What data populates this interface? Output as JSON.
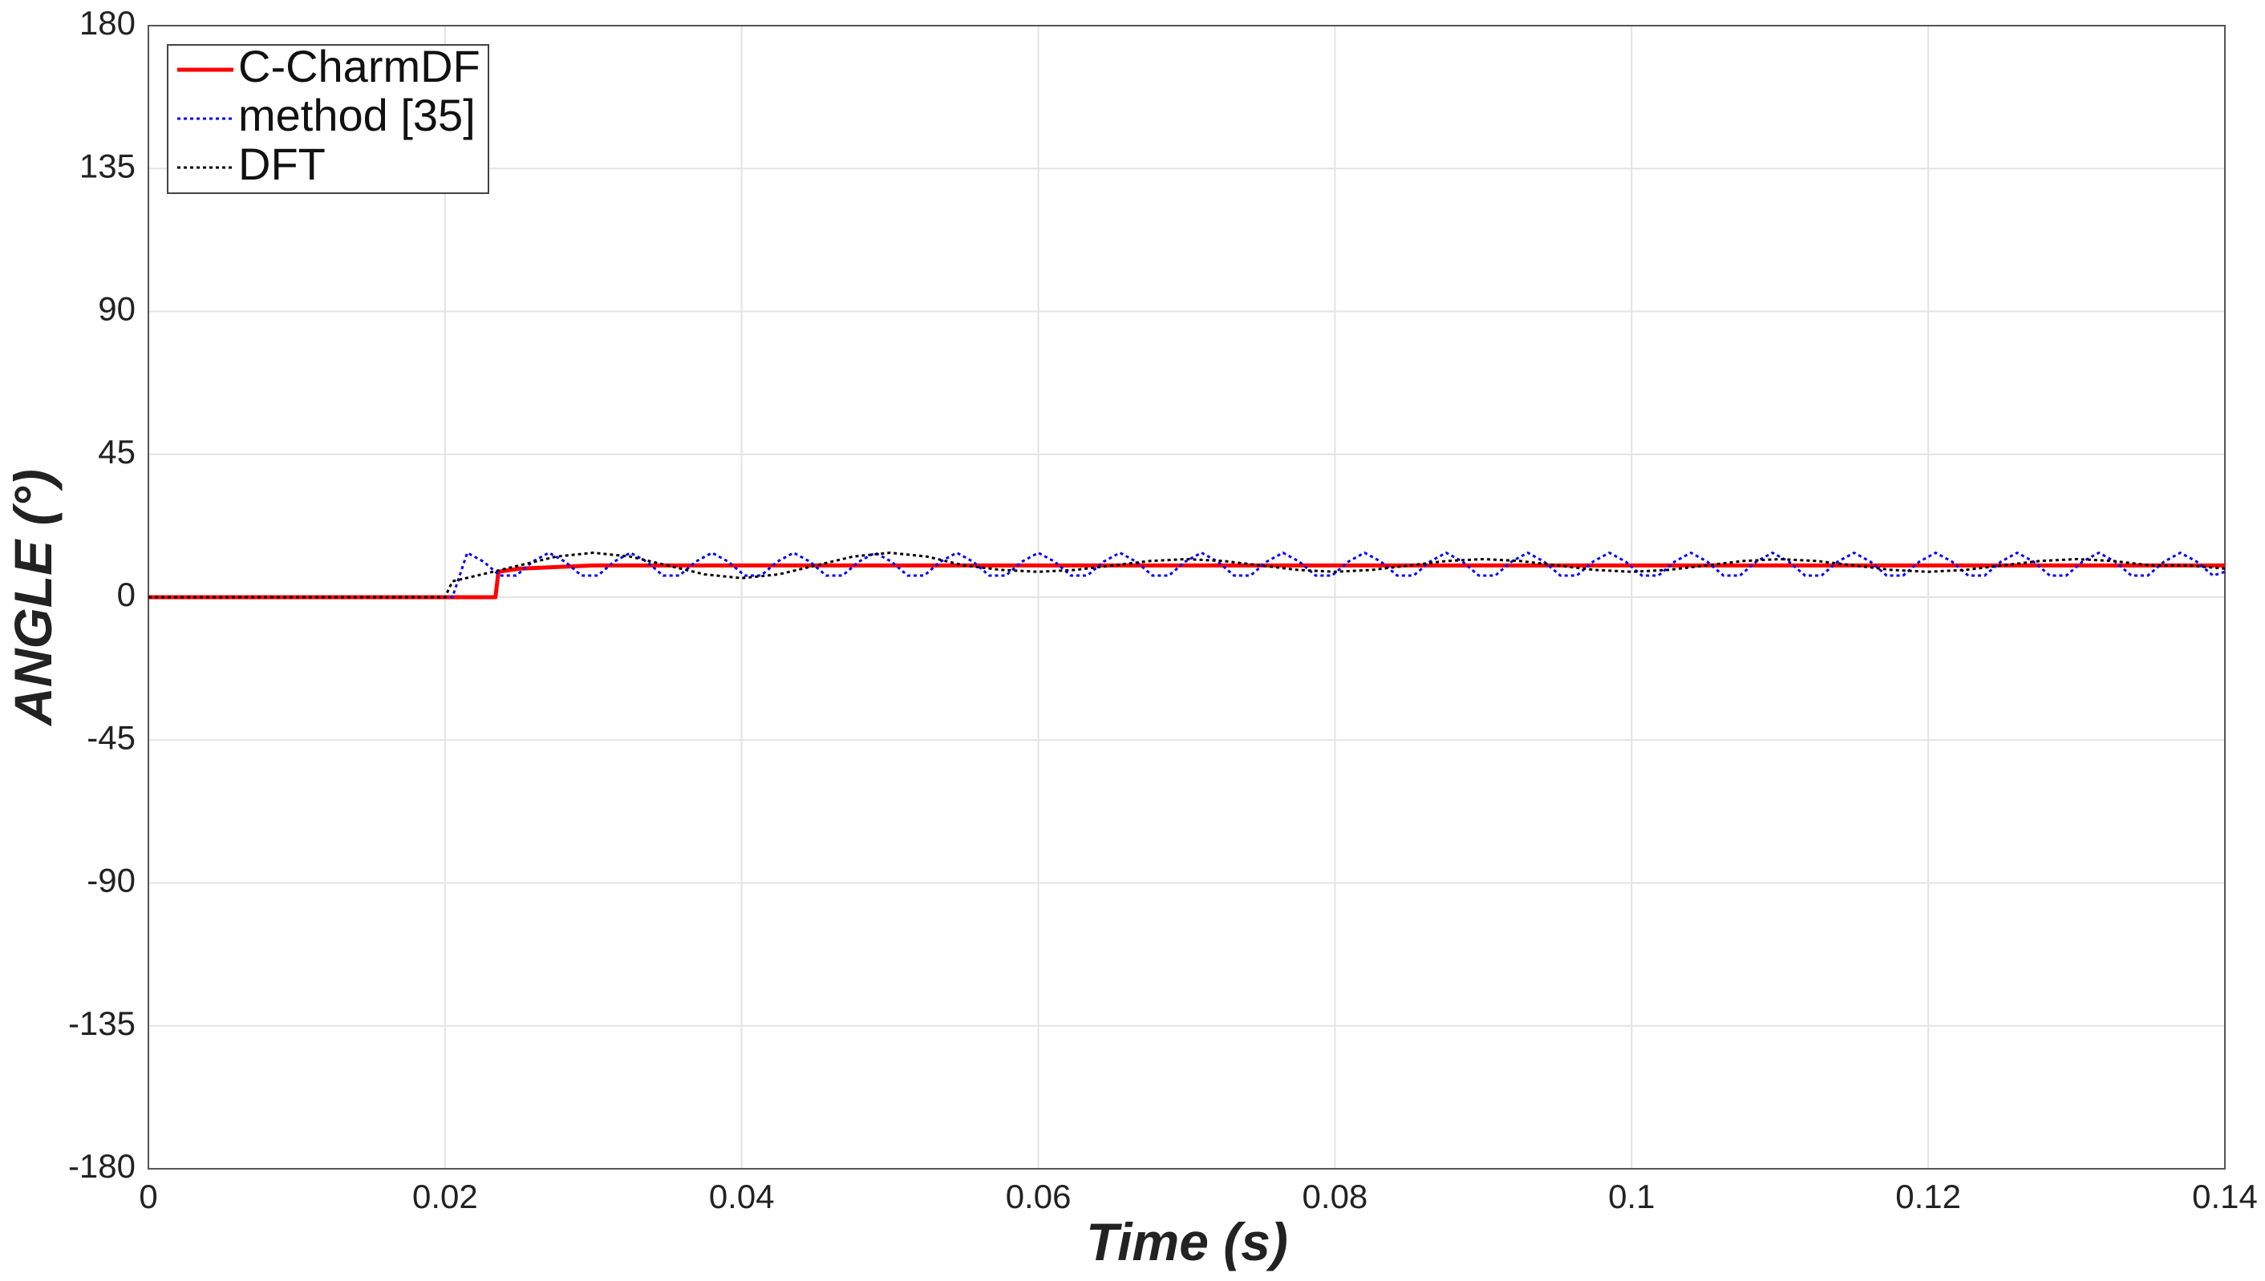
{
  "chart_data": {
    "type": "line",
    "xlabel": "Time (s)",
    "ylabel": "ANGLE (°)",
    "xlim": [
      0,
      0.14
    ],
    "xticks": [
      0,
      0.02,
      0.04,
      0.06,
      0.08,
      0.1,
      0.12,
      0.14
    ],
    "ylim": [
      -180,
      180
    ],
    "yticks": [
      -180,
      -135,
      -90,
      -45,
      0,
      45,
      90,
      135,
      180
    ],
    "grid": true,
    "legend": "upper left",
    "series": [
      {
        "name": "C-CharmDF",
        "color": "#ff0000",
        "linestyle": "solid",
        "x": [
          0,
          0.0234,
          0.0236,
          0.025,
          0.03,
          0.14
        ],
        "values": [
          0,
          0,
          8,
          9,
          10,
          10
        ]
      },
      {
        "name": "method [35]",
        "color": "#0000ff",
        "linestyle": "dotted",
        "x": [
          0,
          0.0205,
          0.0215,
          0.0226,
          0.0237,
          0.0248,
          0.0259,
          0.027,
          0.0281,
          0.0292,
          0.0303,
          0.0314,
          0.0325,
          0.0336,
          0.0347,
          0.0358,
          0.0369,
          0.038,
          0.0391,
          0.0402,
          0.0413,
          0.0424,
          0.0435,
          0.0446,
          0.0457,
          0.0468,
          0.0479,
          0.049,
          0.0501,
          0.0512,
          0.0523,
          0.0534,
          0.0545,
          0.0556,
          0.0567,
          0.0578,
          0.0589,
          0.06,
          0.0611,
          0.0622,
          0.0633,
          0.0644,
          0.0655,
          0.0666,
          0.0677,
          0.0688,
          0.0699,
          0.071,
          0.0721,
          0.0732,
          0.0743,
          0.0754,
          0.0765,
          0.0776,
          0.0787,
          0.0798,
          0.0809,
          0.082,
          0.0831,
          0.0842,
          0.0853,
          0.0864,
          0.0875,
          0.0886,
          0.0897,
          0.0908,
          0.0919,
          0.093,
          0.0941,
          0.0952,
          0.0963,
          0.0974,
          0.0985,
          0.0996,
          0.1007,
          0.1018,
          0.1029,
          0.104,
          0.1051,
          0.1062,
          0.1073,
          0.1084,
          0.1095,
          0.1106,
          0.1117,
          0.1128,
          0.1139,
          0.115,
          0.1161,
          0.1172,
          0.1183,
          0.1194,
          0.1205,
          0.1216,
          0.1227,
          0.1238,
          0.1249,
          0.126,
          0.1271,
          0.1282,
          0.1293,
          0.1304,
          0.1315,
          0.1326,
          0.1337,
          0.1348,
          0.1359,
          0.137,
          0.1381,
          0.1392,
          0.14
        ],
        "values": [
          0,
          0,
          14,
          11.2,
          6.8,
          6.8,
          11.2,
          14,
          11.2,
          6.8,
          6.8,
          11.2,
          14,
          11.2,
          6.8,
          6.8,
          11.2,
          14,
          11.2,
          6.8,
          6.8,
          11.2,
          14,
          11.2,
          6.8,
          6.8,
          11.2,
          14,
          11.2,
          6.8,
          6.8,
          11.2,
          14,
          11.2,
          6.8,
          6.8,
          11.2,
          14,
          11.2,
          6.8,
          6.8,
          11.2,
          14,
          11.2,
          6.8,
          6.8,
          11.2,
          14,
          11.2,
          6.8,
          6.8,
          11.2,
          14,
          11.2,
          6.8,
          6.8,
          11.2,
          14,
          11.2,
          6.8,
          6.8,
          11.2,
          14,
          11.2,
          6.8,
          6.8,
          11.2,
          14,
          11.2,
          6.8,
          6.8,
          11.2,
          14,
          11.2,
          6.8,
          6.8,
          11.2,
          14,
          11.2,
          6.8,
          6.8,
          11.2,
          14,
          11.2,
          6.8,
          6.8,
          11.2,
          14,
          11.2,
          6.8,
          6.8,
          11.2,
          14,
          11.2,
          6.8,
          6.8,
          11.2,
          14,
          11.2,
          6.8,
          6.8,
          11.2,
          14,
          11.2,
          6.8,
          6.8,
          11.2,
          14,
          11.2,
          6.8,
          8
        ]
      },
      {
        "name": "DFT",
        "color": "#000000",
        "linestyle": "dotted",
        "x": [
          0,
          0.02,
          0.0205,
          0.0225,
          0.025,
          0.0275,
          0.03,
          0.0325,
          0.035,
          0.0375,
          0.04,
          0.0425,
          0.045,
          0.0475,
          0.05,
          0.0525,
          0.055,
          0.0575,
          0.06,
          0.0625,
          0.065,
          0.0675,
          0.07,
          0.0725,
          0.075,
          0.0775,
          0.08,
          0.0825,
          0.085,
          0.0875,
          0.09,
          0.0925,
          0.095,
          0.0975,
          0.1,
          0.1025,
          0.105,
          0.1075,
          0.11,
          0.1125,
          0.115,
          0.1175,
          0.12,
          0.1225,
          0.125,
          0.1275,
          0.13,
          0.1325,
          0.135,
          0.1375,
          0.14
        ],
        "values": [
          0,
          0,
          5,
          7.2,
          10,
          12.8,
          14,
          12.8,
          10,
          7.2,
          6,
          7.2,
          10,
          12.8,
          14,
          12.8,
          10,
          8.6,
          8,
          8.6,
          10,
          11.4,
          12,
          11.4,
          10,
          8.6,
          8,
          8.6,
          10,
          11.4,
          12,
          11.4,
          10,
          8.6,
          8,
          8.6,
          10,
          11.4,
          12,
          11.4,
          10,
          8.6,
          8,
          8.6,
          10,
          11.4,
          12,
          11.4,
          10,
          10,
          9
        ]
      }
    ]
  }
}
